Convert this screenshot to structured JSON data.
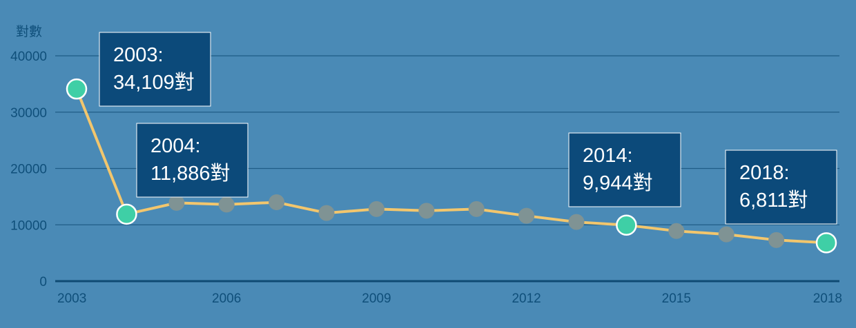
{
  "chart_data": {
    "type": "line",
    "ylabel": "對數",
    "xlabel": "",
    "ylim": [
      0,
      40000
    ],
    "yticks": [
      0,
      10000,
      20000,
      30000,
      40000
    ],
    "xticks": [
      2003,
      2006,
      2009,
      2012,
      2015,
      2018
    ],
    "grid": true,
    "series": [
      {
        "x": [
          2003,
          2004,
          2005,
          2006,
          2007,
          2008,
          2009,
          2010,
          2011,
          2012,
          2013,
          2014,
          2015,
          2016,
          2017,
          2018
        ],
        "values": [
          34109,
          11886,
          13900,
          13600,
          14000,
          12100,
          12800,
          12500,
          12800,
          11600,
          10500,
          9944,
          8900,
          8300,
          7300,
          6811
        ]
      }
    ],
    "highlighted": [
      2003,
      2004,
      2014,
      2018
    ],
    "annotations": [
      {
        "x": 2003,
        "year": "2003:",
        "value": "34,109對"
      },
      {
        "x": 2004,
        "year": "2004:",
        "value": "11,886對"
      },
      {
        "x": 2014,
        "year": "2014:",
        "value": "9,944對"
      },
      {
        "x": 2018,
        "year": "2018:",
        "value": "6,811對"
      }
    ],
    "colors": {
      "background": "#4a8ab6",
      "line": "#f2c66d",
      "marker": "#7f9394",
      "highlight_marker": "#3fcfa6",
      "callout_fill": "#0c4a7a",
      "callout_border": "#ffffff",
      "grid": "#1f5c86",
      "axis": "#0f4a73",
      "tick_text": "#0f4f7a"
    }
  }
}
